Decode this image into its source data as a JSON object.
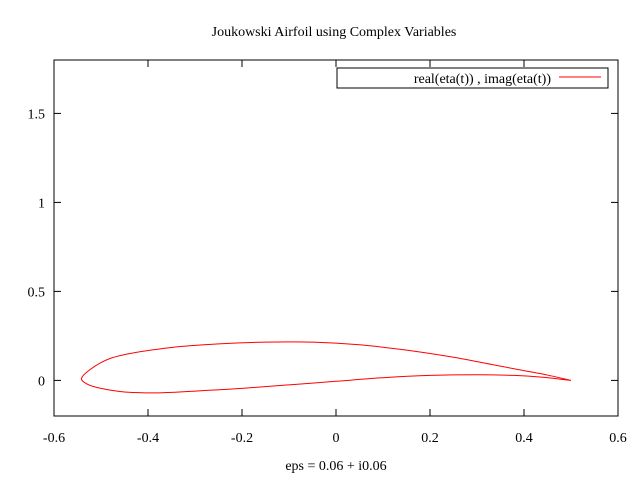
{
  "chart_data": {
    "type": "line",
    "title": "Joukowski Airfoil using Complex Variables",
    "xlabel": "eps = 0.06 + i0.06",
    "ylabel": "",
    "xlim": [
      -0.6,
      0.6
    ],
    "ylim": [
      -0.2,
      1.8
    ],
    "xticks": [
      {
        "value": -0.6,
        "label": "-0.6"
      },
      {
        "value": -0.4,
        "label": "-0.4"
      },
      {
        "value": -0.2,
        "label": "-0.2"
      },
      {
        "value": 0,
        "label": "0"
      },
      {
        "value": 0.2,
        "label": "0.2"
      },
      {
        "value": 0.4,
        "label": "0.4"
      },
      {
        "value": 0.6,
        "label": "0.6"
      }
    ],
    "yticks": [
      {
        "value": 0,
        "label": "0"
      },
      {
        "value": 0.5,
        "label": "0.5"
      },
      {
        "value": 1,
        "label": "1"
      },
      {
        "value": 1.5,
        "label": "1.5"
      }
    ],
    "grid": false,
    "legend_position": "top-right",
    "series": [
      {
        "name": "real(eta(t)) , imag(eta(t))",
        "color": "#ff0000",
        "x": [
          0.5,
          0.45,
          0.4,
          0.33,
          0.25,
          0.15,
          0.05,
          -0.05,
          -0.15,
          -0.25,
          -0.35,
          -0.45,
          -0.5,
          -0.54,
          -0.53,
          -0.5,
          -0.45,
          -0.38,
          -0.3,
          -0.2,
          -0.1,
          0.0,
          0.1,
          0.2,
          0.3,
          0.38,
          0.44,
          0.5
        ],
        "y": [
          0.0,
          0.03,
          0.055,
          0.09,
          0.13,
          0.17,
          0.2,
          0.215,
          0.215,
          0.205,
          0.185,
          0.145,
          0.1,
          0.02,
          -0.02,
          -0.045,
          -0.065,
          -0.07,
          -0.06,
          -0.045,
          -0.025,
          -0.005,
          0.015,
          0.028,
          0.032,
          0.028,
          0.018,
          0.0
        ]
      }
    ]
  }
}
